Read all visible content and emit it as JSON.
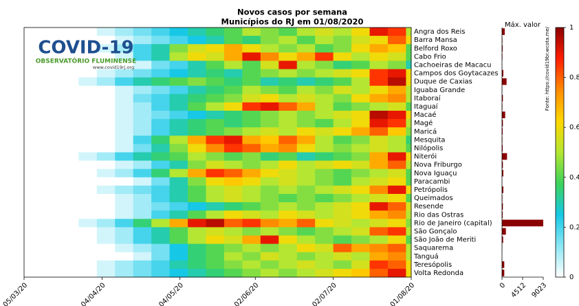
{
  "logo": {
    "title": "COVID-19",
    "subtitle": "OBSERVATÓRIO FLUMINENSE",
    "url": "www.covid19rj.org"
  },
  "chart_data": [
    {
      "type": "heatmap",
      "title": "Novos casos por semana",
      "subtitle": "Municípios do RJ em 01/08/2020",
      "source": "Fonte: https://covid19br.wcota.me/",
      "x": [
        "05/03/20",
        "12/03/20",
        "19/03/20",
        "26/03/20",
        "02/04/20",
        "09/04/20",
        "16/04/20",
        "23/04/20",
        "30/04/20",
        "07/05/20",
        "14/05/20",
        "21/05/20",
        "28/05/20",
        "04/06/20",
        "11/06/20",
        "18/06/20",
        "25/06/20",
        "02/07/20",
        "09/07/20",
        "16/07/20",
        "23/07/20",
        "30/07/20"
      ],
      "xlim": [
        "05/03/20",
        "01/08/20"
      ],
      "xticks": [
        "05/03/20",
        "04/04/20",
        "04/05/20",
        "02/06/20",
        "02/07/20",
        "01/08/20"
      ],
      "clim": [
        0,
        1
      ],
      "cticks": [
        0,
        0.2,
        0.4,
        0.6,
        0.8,
        1
      ],
      "colormap": [
        "#ffffff",
        "#8ce6f5",
        "#16c8e6",
        "#3cd25a",
        "#b4e632",
        "#ffd700",
        "#ff8c00",
        "#ff1e00",
        "#8b0000"
      ],
      "series": [
        {
          "name": "Angra dos Reis",
          "values": [
            0,
            0,
            0,
            0,
            0.05,
            0.1,
            0.15,
            0.2,
            0.25,
            0.3,
            0.35,
            0.4,
            0.5,
            0.45,
            0.4,
            0.5,
            0.55,
            0.5,
            0.6,
            0.9,
            0.85,
            0.5
          ]
        },
        {
          "name": "Barra Mansa",
          "values": [
            0,
            0,
            0,
            0,
            0,
            0.05,
            0.1,
            0.15,
            0.2,
            0.25,
            0.3,
            0.4,
            0.35,
            0.45,
            0.5,
            0.4,
            0.5,
            0.45,
            0.55,
            0.6,
            0.8,
            0.6
          ]
        },
        {
          "name": "Belford Roxo",
          "values": [
            0,
            0,
            0,
            0,
            0.05,
            0.1,
            0.2,
            0.3,
            0.45,
            0.55,
            0.6,
            0.7,
            0.6,
            0.5,
            0.45,
            0.5,
            0.4,
            0.45,
            0.6,
            0.7,
            0.65,
            0.4
          ]
        },
        {
          "name": "Cabo Frio",
          "values": [
            0,
            0,
            0,
            0,
            0,
            0.05,
            0.2,
            0.3,
            0.5,
            0.6,
            0.55,
            0.7,
            0.9,
            0.75,
            0.6,
            0.7,
            0.85,
            0.6,
            0.5,
            0.6,
            0.55,
            0.4
          ]
        },
        {
          "name": "Cachoeiras de Macacu",
          "values": [
            0,
            0,
            0,
            0,
            0,
            0,
            0.05,
            0.15,
            0.2,
            0.3,
            0.4,
            0.5,
            0.4,
            0.55,
            0.9,
            0.5,
            0.45,
            0.35,
            0.4,
            0.5,
            0.45,
            0.3
          ]
        },
        {
          "name": "Campos dos Goytacazes",
          "values": [
            0,
            0,
            0,
            0,
            0.05,
            0.1,
            0.15,
            0.2,
            0.25,
            0.3,
            0.35,
            0.3,
            0.4,
            0.45,
            0.5,
            0.45,
            0.5,
            0.55,
            0.6,
            0.85,
            0.9,
            0.6
          ]
        },
        {
          "name": "Duque de Caxias",
          "values": [
            0,
            0,
            0,
            0.05,
            0.1,
            0.2,
            0.3,
            0.35,
            0.4,
            0.45,
            0.4,
            0.35,
            0.4,
            0.3,
            0.35,
            0.3,
            0.35,
            0.4,
            0.5,
            0.85,
            0.95,
            0.6
          ]
        },
        {
          "name": "Iguaba Grande",
          "values": [
            0,
            0,
            0,
            0,
            0,
            0.05,
            0.1,
            0.15,
            0.2,
            0.3,
            0.35,
            0.4,
            0.5,
            0.45,
            0.4,
            0.5,
            0.45,
            0.55,
            0.5,
            0.6,
            0.7,
            0.5
          ]
        },
        {
          "name": "Itaboraí",
          "values": [
            0,
            0,
            0,
            0,
            0,
            0.05,
            0.15,
            0.2,
            0.3,
            0.35,
            0.4,
            0.45,
            0.55,
            0.6,
            0.5,
            0.55,
            0.5,
            0.45,
            0.6,
            0.7,
            0.75,
            0.5
          ]
        },
        {
          "name": "Itaguaí",
          "values": [
            0,
            0,
            0,
            0,
            0,
            0.05,
            0.1,
            0.2,
            0.3,
            0.4,
            0.5,
            0.6,
            0.85,
            0.9,
            0.8,
            0.7,
            0.5,
            0.4,
            0.45,
            0.5,
            0.55,
            0.4
          ]
        },
        {
          "name": "Macaé",
          "values": [
            0,
            0,
            0,
            0,
            0,
            0.05,
            0.1,
            0.15,
            0.2,
            0.25,
            0.3,
            0.35,
            0.4,
            0.45,
            0.5,
            0.45,
            0.5,
            0.55,
            0.6,
            0.95,
            0.9,
            0.6
          ]
        },
        {
          "name": "Magé",
          "values": [
            0,
            0,
            0,
            0,
            0,
            0.05,
            0.1,
            0.2,
            0.3,
            0.35,
            0.4,
            0.35,
            0.4,
            0.45,
            0.5,
            0.45,
            0.4,
            0.5,
            0.6,
            0.9,
            0.85,
            0.5
          ]
        },
        {
          "name": "Maricá",
          "values": [
            0,
            0,
            0,
            0,
            0,
            0.05,
            0.1,
            0.2,
            0.3,
            0.35,
            0.4,
            0.45,
            0.5,
            0.55,
            0.5,
            0.6,
            0.55,
            0.6,
            0.7,
            0.8,
            0.65,
            0.45
          ]
        },
        {
          "name": "Mesquita",
          "values": [
            0,
            0,
            0,
            0,
            0,
            0.05,
            0.2,
            0.35,
            0.5,
            0.7,
            0.85,
            0.9,
            0.7,
            0.65,
            0.8,
            0.7,
            0.5,
            0.4,
            0.45,
            0.55,
            0.5,
            0.35
          ]
        },
        {
          "name": "Nilópolis",
          "values": [
            0,
            0,
            0,
            0,
            0,
            0.05,
            0.15,
            0.3,
            0.45,
            0.6,
            0.75,
            0.85,
            0.8,
            0.7,
            0.75,
            0.6,
            0.5,
            0.45,
            0.5,
            0.55,
            0.5,
            0.4
          ]
        },
        {
          "name": "Niterói",
          "values": [
            0,
            0,
            0,
            0.05,
            0.1,
            0.2,
            0.3,
            0.35,
            0.4,
            0.5,
            0.45,
            0.4,
            0.45,
            0.35,
            0.4,
            0.3,
            0.35,
            0.4,
            0.45,
            0.7,
            0.9,
            0.6
          ]
        },
        {
          "name": "Nova Friburgo",
          "values": [
            0,
            0,
            0,
            0,
            0,
            0.05,
            0.1,
            0.2,
            0.3,
            0.45,
            0.55,
            0.5,
            0.45,
            0.5,
            0.6,
            0.5,
            0.55,
            0.6,
            0.55,
            0.7,
            0.8,
            0.5
          ]
        },
        {
          "name": "Nova Iguaçu",
          "values": [
            0,
            0,
            0,
            0,
            0.05,
            0.1,
            0.2,
            0.35,
            0.5,
            0.7,
            0.85,
            0.8,
            0.7,
            0.6,
            0.55,
            0.5,
            0.45,
            0.4,
            0.45,
            0.5,
            0.55,
            0.4
          ]
        },
        {
          "name": "Paracambi",
          "values": [
            0,
            0,
            0,
            0,
            0,
            0,
            0.05,
            0.15,
            0.3,
            0.45,
            0.6,
            0.65,
            0.6,
            0.5,
            0.55,
            0.5,
            0.45,
            0.4,
            0.5,
            0.55,
            0.6,
            0.4
          ]
        },
        {
          "name": "Petrópolis",
          "values": [
            0,
            0,
            0,
            0,
            0.05,
            0.1,
            0.15,
            0.2,
            0.3,
            0.4,
            0.5,
            0.55,
            0.5,
            0.45,
            0.5,
            0.45,
            0.5,
            0.55,
            0.6,
            0.75,
            0.9,
            0.6
          ]
        },
        {
          "name": "Queimados",
          "values": [
            0,
            0,
            0,
            0,
            0,
            0.05,
            0.1,
            0.2,
            0.3,
            0.4,
            0.5,
            0.55,
            0.5,
            0.45,
            0.4,
            0.45,
            0.4,
            0.45,
            0.5,
            0.55,
            0.6,
            0.4
          ]
        },
        {
          "name": "Resende",
          "values": [
            0,
            0,
            0,
            0,
            0,
            0.05,
            0.1,
            0.15,
            0.2,
            0.25,
            0.3,
            0.35,
            0.4,
            0.45,
            0.5,
            0.45,
            0.5,
            0.55,
            0.6,
            0.9,
            0.8,
            0.55
          ]
        },
        {
          "name": "Rio das Ostras",
          "values": [
            0,
            0,
            0,
            0,
            0,
            0.05,
            0.1,
            0.2,
            0.3,
            0.4,
            0.5,
            0.6,
            0.55,
            0.5,
            0.6,
            0.55,
            0.5,
            0.55,
            0.6,
            0.7,
            0.75,
            0.5
          ]
        },
        {
          "name": "Rio de Janeiro (capital)",
          "values": [
            0,
            0,
            0,
            0.05,
            0.1,
            0.2,
            0.35,
            0.5,
            0.7,
            0.9,
            0.95,
            0.8,
            0.85,
            0.75,
            0.7,
            0.8,
            0.6,
            0.55,
            0.5,
            0.55,
            0.6,
            0.45
          ]
        },
        {
          "name": "São Gonçalo",
          "values": [
            0,
            0,
            0,
            0,
            0.05,
            0.1,
            0.2,
            0.3,
            0.4,
            0.5,
            0.55,
            0.5,
            0.45,
            0.5,
            0.45,
            0.4,
            0.45,
            0.5,
            0.55,
            0.8,
            0.85,
            0.5
          ]
        },
        {
          "name": "São João de Meriti",
          "values": [
            0,
            0,
            0,
            0,
            0.05,
            0.1,
            0.2,
            0.3,
            0.4,
            0.5,
            0.6,
            0.55,
            0.7,
            0.9,
            0.6,
            0.5,
            0.45,
            0.4,
            0.45,
            0.5,
            0.6,
            0.4
          ]
        },
        {
          "name": "Saquarema",
          "values": [
            0,
            0,
            0,
            0,
            0,
            0.05,
            0.1,
            0.15,
            0.25,
            0.35,
            0.4,
            0.45,
            0.5,
            0.45,
            0.5,
            0.6,
            0.55,
            0.8,
            0.7,
            0.75,
            0.8,
            0.5
          ]
        },
        {
          "name": "Tanguá",
          "values": [
            0,
            0,
            0,
            0,
            0,
            0,
            0.05,
            0.15,
            0.25,
            0.35,
            0.4,
            0.5,
            0.45,
            0.55,
            0.5,
            0.45,
            0.5,
            0.55,
            0.5,
            0.7,
            0.75,
            0.5
          ]
        },
        {
          "name": "Teresópolis",
          "values": [
            0,
            0,
            0,
            0,
            0.05,
            0.1,
            0.15,
            0.2,
            0.3,
            0.35,
            0.4,
            0.45,
            0.5,
            0.45,
            0.5,
            0.55,
            0.5,
            0.45,
            0.55,
            0.85,
            0.8,
            0.6
          ]
        },
        {
          "name": "Volta Redonda",
          "values": [
            0,
            0,
            0,
            0,
            0.05,
            0.1,
            0.15,
            0.2,
            0.25,
            0.3,
            0.35,
            0.4,
            0.45,
            0.5,
            0.45,
            0.5,
            0.55,
            0.6,
            0.65,
            0.8,
            0.9,
            0.6
          ]
        }
      ]
    },
    {
      "type": "bar",
      "title": "Máx. valor",
      "color": "#8b0000",
      "values": [
        600,
        100,
        150,
        100,
        30,
        300,
        1000,
        50,
        200,
        100,
        700,
        200,
        150,
        100,
        150,
        1100,
        200,
        300,
        30,
        300,
        100,
        200,
        150,
        9023,
        850,
        250,
        50,
        20,
        500,
        500
      ],
      "xlim": [
        0,
        9023
      ],
      "xticks": [
        0,
        4512,
        9023
      ]
    }
  ]
}
